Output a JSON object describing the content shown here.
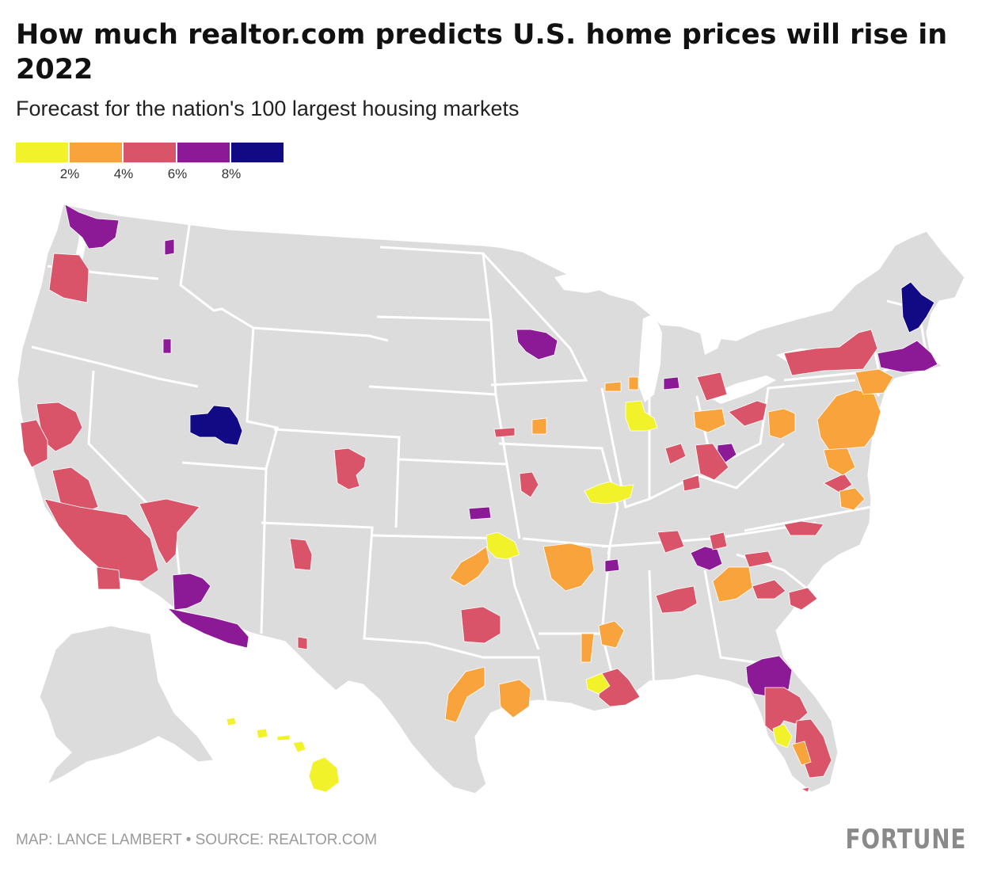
{
  "title": "How much realtor.com predicts U.S. home prices will rise in 2022",
  "subtitle": "Forecast for the nation's 100 largest housing markets",
  "legend": {
    "colors": [
      "#f2f22a",
      "#f8a33c",
      "#d95468",
      "#8c1a97",
      "#120a85"
    ],
    "ticks": [
      "2%",
      "4%",
      "6%",
      "8%"
    ]
  },
  "map": {
    "base_color": "#dcdcdc",
    "state_border_color": "#ffffff",
    "categories": {
      "lt2": "#f2f22a",
      "2to4": "#f8a33c",
      "4to6": "#d95468",
      "6to8": "#8c1a97",
      "gt8": "#120a85"
    }
  },
  "footer": "MAP: LANCE LAMBERT • SOURCE: REALTOR.COM",
  "logo": "FORTUNE"
}
